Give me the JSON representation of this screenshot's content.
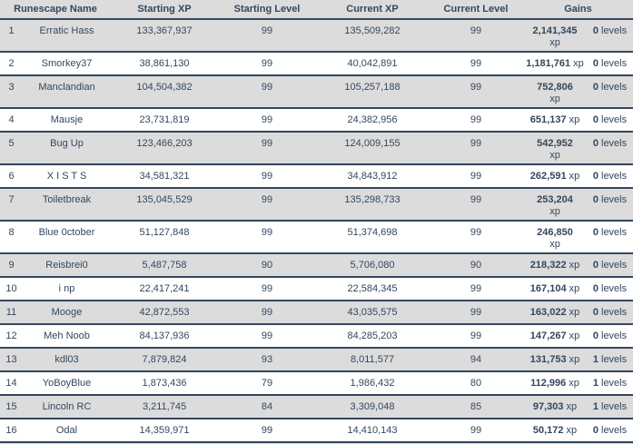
{
  "colors": {
    "navy": "#33475e",
    "row_gray": "#dcdcdc",
    "row_white": "#ffffff"
  },
  "table": {
    "columns": [
      "Runescape Name",
      "Starting XP",
      "Starting Level",
      "Current XP",
      "Current Level",
      "Gains"
    ]
  },
  "rows": [
    {
      "rank": "1",
      "name": "Erratic Hass",
      "starting_xp": "133,367,937",
      "starting_level": "99",
      "current_xp": "135,509,282",
      "current_level": "99",
      "gains_xp": "2,141,345",
      "gains_xp_unit": "xp",
      "gains_levels": "0",
      "gains_levels_unit": "levels",
      "xp_wrapped": true
    },
    {
      "rank": "2",
      "name": "Smorkey37",
      "starting_xp": "38,861,130",
      "starting_level": "99",
      "current_xp": "40,042,891",
      "current_level": "99",
      "gains_xp": "1,181,761",
      "gains_xp_unit": "xp",
      "gains_levels": "0",
      "gains_levels_unit": "levels",
      "xp_wrapped": false
    },
    {
      "rank": "3",
      "name": "Manclandian",
      "starting_xp": "104,504,382",
      "starting_level": "99",
      "current_xp": "105,257,188",
      "current_level": "99",
      "gains_xp": "752,806",
      "gains_xp_unit": "xp",
      "gains_levels": "0",
      "gains_levels_unit": "levels",
      "xp_wrapped": true
    },
    {
      "rank": "4",
      "name": "Mausje",
      "starting_xp": "23,731,819",
      "starting_level": "99",
      "current_xp": "24,382,956",
      "current_level": "99",
      "gains_xp": "651,137",
      "gains_xp_unit": "xp",
      "gains_levels": "0",
      "gains_levels_unit": "levels",
      "xp_wrapped": false
    },
    {
      "rank": "5",
      "name": "Bug Up",
      "starting_xp": "123,466,203",
      "starting_level": "99",
      "current_xp": "124,009,155",
      "current_level": "99",
      "gains_xp": "542,952",
      "gains_xp_unit": "xp",
      "gains_levels": "0",
      "gains_levels_unit": "levels",
      "xp_wrapped": true
    },
    {
      "rank": "6",
      "name": "X I S T S",
      "starting_xp": "34,581,321",
      "starting_level": "99",
      "current_xp": "34,843,912",
      "current_level": "99",
      "gains_xp": "262,591",
      "gains_xp_unit": "xp",
      "gains_levels": "0",
      "gains_levels_unit": "levels",
      "xp_wrapped": false
    },
    {
      "rank": "7",
      "name": "Toiletbreak",
      "starting_xp": "135,045,529",
      "starting_level": "99",
      "current_xp": "135,298,733",
      "current_level": "99",
      "gains_xp": "253,204",
      "gains_xp_unit": "xp",
      "gains_levels": "0",
      "gains_levels_unit": "levels",
      "xp_wrapped": true
    },
    {
      "rank": "8",
      "name": "Blue 0ctober",
      "starting_xp": "51,127,848",
      "starting_level": "99",
      "current_xp": "51,374,698",
      "current_level": "99",
      "gains_xp": "246,850",
      "gains_xp_unit": "xp",
      "gains_levels": "0",
      "gains_levels_unit": "levels",
      "xp_wrapped": true
    },
    {
      "rank": "9",
      "name": "Reisbrei0",
      "starting_xp": "5,487,758",
      "starting_level": "90",
      "current_xp": "5,706,080",
      "current_level": "90",
      "gains_xp": "218,322",
      "gains_xp_unit": "xp",
      "gains_levels": "0",
      "gains_levels_unit": "levels",
      "xp_wrapped": false
    },
    {
      "rank": "10",
      "name": "i np",
      "starting_xp": "22,417,241",
      "starting_level": "99",
      "current_xp": "22,584,345",
      "current_level": "99",
      "gains_xp": "167,104",
      "gains_xp_unit": "xp",
      "gains_levels": "0",
      "gains_levels_unit": "levels",
      "xp_wrapped": false
    },
    {
      "rank": "11",
      "name": "Mooge",
      "starting_xp": "42,872,553",
      "starting_level": "99",
      "current_xp": "43,035,575",
      "current_level": "99",
      "gains_xp": "163,022",
      "gains_xp_unit": "xp",
      "gains_levels": "0",
      "gains_levels_unit": "levels",
      "xp_wrapped": false
    },
    {
      "rank": "12",
      "name": "Meh Noob",
      "starting_xp": "84,137,936",
      "starting_level": "99",
      "current_xp": "84,285,203",
      "current_level": "99",
      "gains_xp": "147,267",
      "gains_xp_unit": "xp",
      "gains_levels": "0",
      "gains_levels_unit": "levels",
      "xp_wrapped": false
    },
    {
      "rank": "13",
      "name": "kdl03",
      "starting_xp": "7,879,824",
      "starting_level": "93",
      "current_xp": "8,011,577",
      "current_level": "94",
      "gains_xp": "131,753",
      "gains_xp_unit": "xp",
      "gains_levels": "1",
      "gains_levels_unit": "levels",
      "xp_wrapped": false
    },
    {
      "rank": "14",
      "name": "YoBoyBlue",
      "starting_xp": "1,873,436",
      "starting_level": "79",
      "current_xp": "1,986,432",
      "current_level": "80",
      "gains_xp": "112,996",
      "gains_xp_unit": "xp",
      "gains_levels": "1",
      "gains_levels_unit": "levels",
      "xp_wrapped": false
    },
    {
      "rank": "15",
      "name": "Lincoln RC",
      "starting_xp": "3,211,745",
      "starting_level": "84",
      "current_xp": "3,309,048",
      "current_level": "85",
      "gains_xp": "97,303",
      "gains_xp_unit": "xp",
      "gains_levels": "1",
      "gains_levels_unit": "levels",
      "xp_wrapped": false
    },
    {
      "rank": "16",
      "name": "Odal",
      "starting_xp": "14,359,971",
      "starting_level": "99",
      "current_xp": "14,410,143",
      "current_level": "99",
      "gains_xp": "50,172",
      "gains_xp_unit": "xp",
      "gains_levels": "0",
      "gains_levels_unit": "levels",
      "xp_wrapped": false
    }
  ]
}
